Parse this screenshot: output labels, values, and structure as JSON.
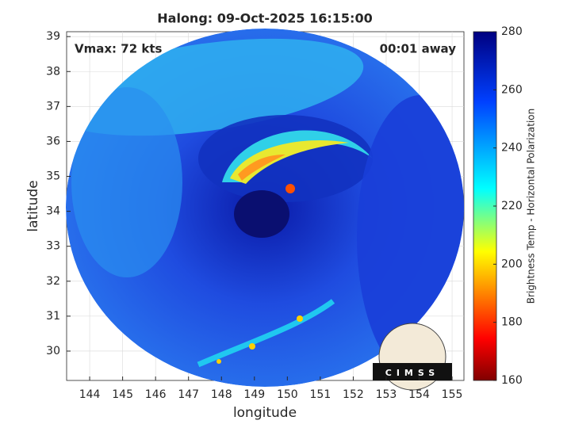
{
  "title": "Halong: 09-Oct-2025 16:15:00",
  "annotations": {
    "intensity": "Vmax: 72 kts",
    "offset": "00:01 away"
  },
  "map": {
    "xlabel": "longitude",
    "ylabel": "latitude",
    "xlim": [
      143.3,
      155.36
    ],
    "ylim": [
      29.16,
      39.14
    ],
    "xticks": [
      144,
      145,
      146,
      147,
      148,
      149,
      150,
      151,
      152,
      153,
      154,
      155
    ],
    "yticks": [
      30,
      31,
      32,
      33,
      34,
      35,
      36,
      37,
      38,
      39
    ],
    "grid": true
  },
  "colorbar": {
    "label": "Brightness Temp - Horizontal Polarization",
    "lim": [
      160,
      280
    ],
    "ticks": [
      160,
      180,
      200,
      220,
      240,
      260,
      280
    ]
  },
  "logo": "CIMSS"
}
